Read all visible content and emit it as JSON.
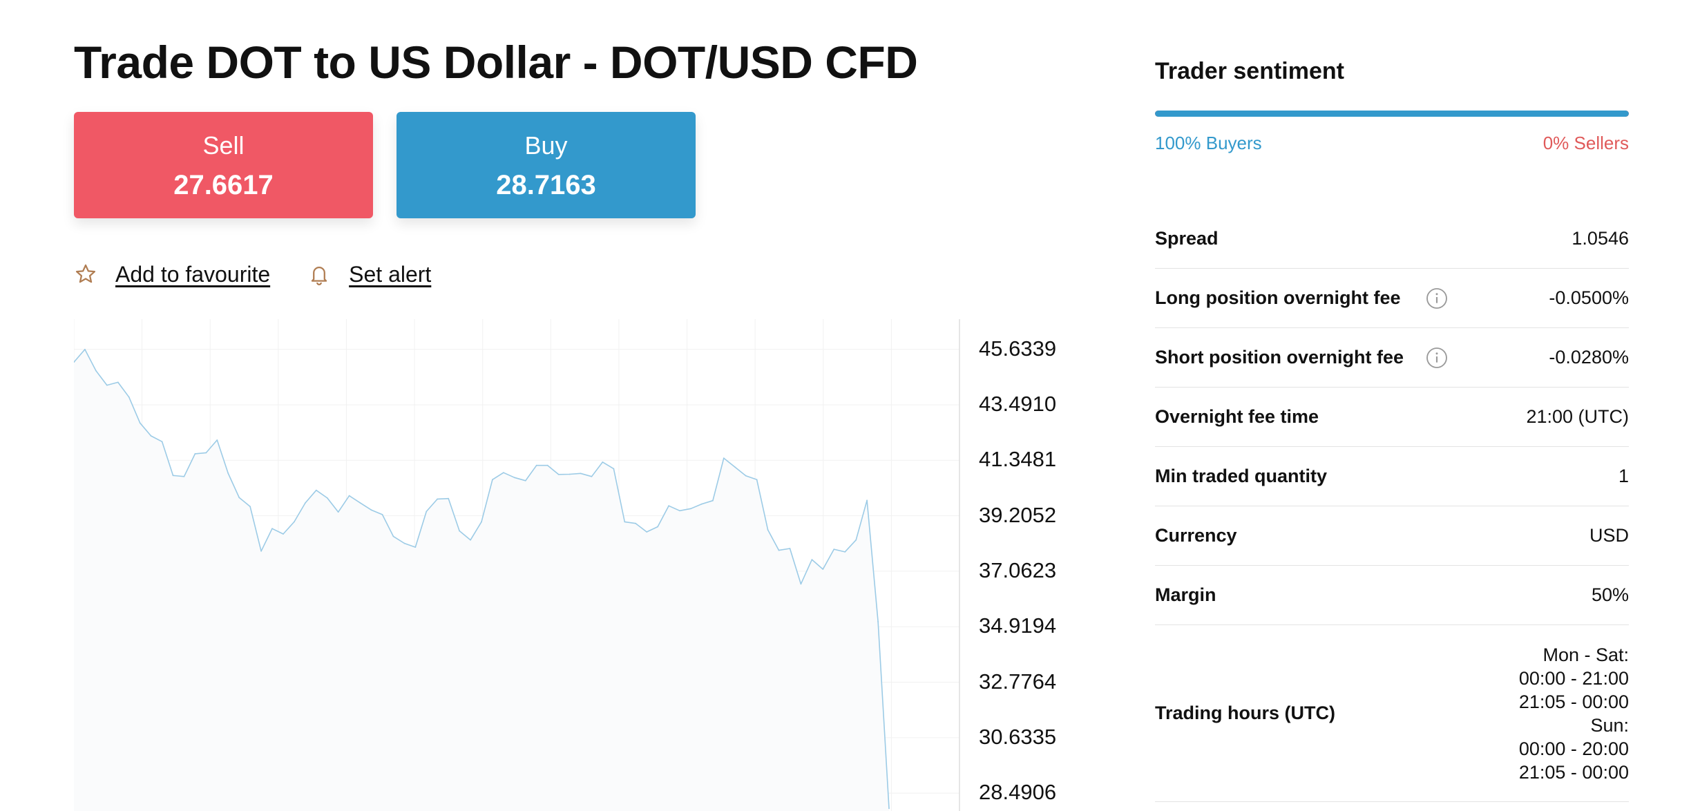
{
  "page": {
    "title": "Trade DOT to US Dollar - DOT/USD CFD"
  },
  "trade": {
    "sell_label": "Sell",
    "sell_price": "27.6617",
    "buy_label": "Buy",
    "buy_price": "28.7163",
    "colors": {
      "sell": "#f05865",
      "buy": "#3399cc"
    }
  },
  "actions": {
    "favourite_label": "Add to favourite",
    "favourite_icon": "star-icon",
    "alert_label": "Set alert",
    "alert_icon": "bell-icon"
  },
  "chart_data": {
    "type": "area",
    "title": "",
    "xlabel": "",
    "ylabel": "",
    "ylim": [
      27.8,
      46.8
    ],
    "yticks": [
      "45.6339",
      "43.4910",
      "41.3481",
      "39.2052",
      "37.0623",
      "34.9194",
      "32.7764",
      "30.6335",
      "28.4906"
    ],
    "grid": true,
    "line_color": "#9ccbe6",
    "series": [
      {
        "values": [
          45.14,
          45.63,
          44.81,
          44.25,
          44.36,
          43.79,
          42.79,
          42.29,
          42.07,
          40.76,
          40.72,
          41.6,
          41.64,
          42.13,
          40.85,
          39.91,
          39.56,
          37.84,
          38.71,
          38.5,
          38.97,
          39.7,
          40.19,
          39.89,
          39.35,
          39.98,
          39.7,
          39.43,
          39.25,
          38.41,
          38.14,
          37.99,
          39.37,
          39.85,
          39.87,
          38.62,
          38.27,
          38.97,
          40.6,
          40.87,
          40.68,
          40.56,
          41.15,
          41.15,
          40.8,
          40.81,
          40.84,
          40.72,
          41.28,
          41.02,
          38.97,
          38.91,
          38.58,
          38.78,
          39.59,
          39.4,
          39.48,
          39.66,
          39.79,
          41.43,
          41.09,
          40.75,
          40.6,
          38.66,
          37.87,
          37.94,
          36.57,
          37.51,
          37.14,
          37.91,
          37.81,
          38.27,
          39.8,
          35.12,
          27.9
        ]
      }
    ]
  },
  "sentiment": {
    "title": "Trader sentiment",
    "buyers_pct": 100,
    "buyers_label": "100% Buyers",
    "sellers_label": "0% Sellers",
    "colors": {
      "buyers": "#3399cc",
      "sellers": "#e05a5a"
    }
  },
  "details": [
    {
      "key": "Spread",
      "value": "1.0546"
    },
    {
      "key": "Long position overnight fee",
      "value": "-0.0500%",
      "info_icon": "info-icon"
    },
    {
      "key": "Short position overnight fee",
      "value": "-0.0280%",
      "info_icon": "info-icon"
    },
    {
      "key": "Overnight fee time",
      "value": "21:00 (UTC)"
    },
    {
      "key": "Min traded quantity",
      "value": "1"
    },
    {
      "key": "Currency",
      "value": "USD"
    },
    {
      "key": "Margin",
      "value": "50%"
    },
    {
      "key": "Trading hours (UTC)",
      "value": "Mon - Sat:\n00:00 - 21:00\n21:05 - 00:00\nSun:\n00:00 - 20:00\n21:05 - 00:00"
    }
  ]
}
